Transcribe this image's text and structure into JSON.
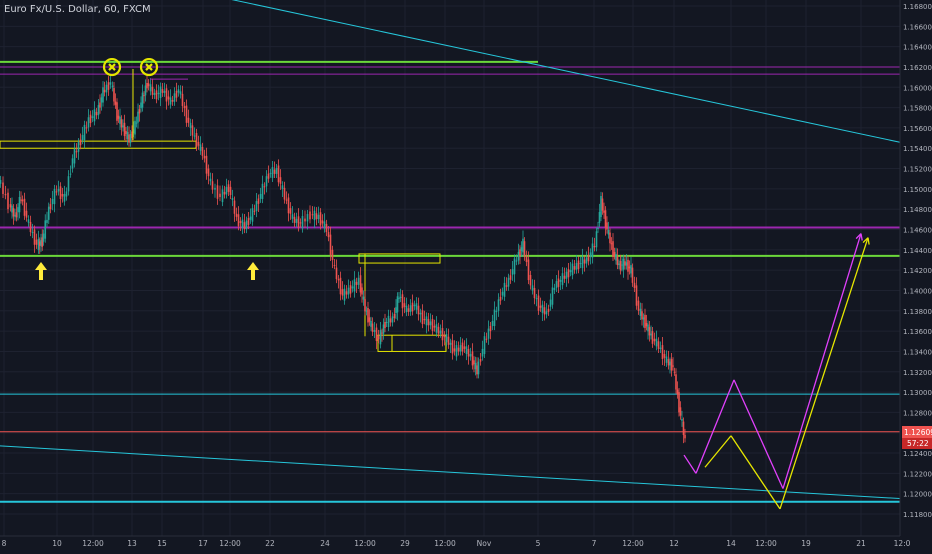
{
  "header": {
    "title": "Euro Fx/U.S. Dollar, 60, FXCM"
  },
  "chart_data": {
    "type": "candlestick",
    "title": "Euro Fx/U.S. Dollar, 60, FXCM",
    "ylim": [
      1.118,
      1.169
    ],
    "y_ticks": [
      "1.16800",
      "1.16600",
      "1.16400",
      "1.16200",
      "1.16000",
      "1.15800",
      "1.15600",
      "1.15400",
      "1.15200",
      "1.15000",
      "1.14800",
      "1.14600",
      "1.14400",
      "1.14200",
      "1.14000",
      "1.13800",
      "1.13600",
      "1.13400",
      "1.13200",
      "1.13000",
      "1.12800",
      "1.12600",
      "1.12400",
      "1.12200",
      "1.12000",
      "1.11800"
    ],
    "x_ticks": [
      "8",
      "10",
      "12:00",
      "13",
      "15",
      "17",
      "12:00",
      "22",
      "24",
      "12:00",
      "29",
      "12:00",
      "Nov",
      "5",
      "7",
      "12:00",
      "12",
      "14",
      "12:00",
      "19",
      "21",
      "12:0"
    ],
    "grid": true,
    "last_price": {
      "price": "1.12609",
      "countdown": "57:22",
      "color": "#ef5350"
    },
    "price_path": [
      [
        0,
        1.151
      ],
      [
        10,
        1.1485
      ],
      [
        16,
        1.1472
      ],
      [
        22,
        1.1492
      ],
      [
        30,
        1.1465
      ],
      [
        38,
        1.1445
      ],
      [
        43,
        1.1448
      ],
      [
        50,
        1.148
      ],
      [
        58,
        1.15
      ],
      [
        66,
        1.149
      ],
      [
        74,
        1.153
      ],
      [
        82,
        1.1548
      ],
      [
        90,
        1.1568
      ],
      [
        98,
        1.1575
      ],
      [
        104,
        1.1595
      ],
      [
        112,
        1.1605
      ],
      [
        118,
        1.1572
      ],
      [
        124,
        1.156
      ],
      [
        130,
        1.1548
      ],
      [
        136,
        1.1562
      ],
      [
        142,
        1.1585
      ],
      [
        148,
        1.1604
      ],
      [
        156,
        1.1592
      ],
      [
        164,
        1.1597
      ],
      [
        172,
        1.1585
      ],
      [
        180,
        1.1598
      ],
      [
        188,
        1.157
      ],
      [
        196,
        1.155
      ],
      [
        204,
        1.1535
      ],
      [
        212,
        1.1505
      ],
      [
        222,
        1.1492
      ],
      [
        230,
        1.1502
      ],
      [
        238,
        1.147
      ],
      [
        246,
        1.1463
      ],
      [
        254,
        1.1476
      ],
      [
        262,
        1.1495
      ],
      [
        270,
        1.1515
      ],
      [
        278,
        1.1518
      ],
      [
        286,
        1.1492
      ],
      [
        294,
        1.147
      ],
      [
        302,
        1.1466
      ],
      [
        312,
        1.1475
      ],
      [
        320,
        1.1472
      ],
      [
        328,
        1.146
      ],
      [
        336,
        1.142
      ],
      [
        344,
        1.1395
      ],
      [
        352,
        1.1402
      ],
      [
        360,
        1.141
      ],
      [
        366,
        1.1382
      ],
      [
        372,
        1.1365
      ],
      [
        380,
        1.1352
      ],
      [
        386,
        1.1368
      ],
      [
        394,
        1.1372
      ],
      [
        400,
        1.1395
      ],
      [
        408,
        1.138
      ],
      [
        416,
        1.1386
      ],
      [
        424,
        1.1372
      ],
      [
        432,
        1.1367
      ],
      [
        440,
        1.136
      ],
      [
        448,
        1.1352
      ],
      [
        456,
        1.134
      ],
      [
        464,
        1.1345
      ],
      [
        472,
        1.1335
      ],
      [
        478,
        1.132
      ],
      [
        486,
        1.135
      ],
      [
        494,
        1.137
      ],
      [
        502,
        1.1395
      ],
      [
        510,
        1.141
      ],
      [
        518,
        1.1432
      ],
      [
        524,
        1.1446
      ],
      [
        532,
        1.1405
      ],
      [
        540,
        1.1385
      ],
      [
        548,
        1.1377
      ],
      [
        556,
        1.1405
      ],
      [
        564,
        1.1412
      ],
      [
        572,
        1.142
      ],
      [
        580,
        1.1426
      ],
      [
        588,
        1.143
      ],
      [
        596,
        1.1445
      ],
      [
        602,
        1.1488
      ],
      [
        608,
        1.146
      ],
      [
        614,
        1.1438
      ],
      [
        620,
        1.1424
      ],
      [
        626,
        1.1427
      ],
      [
        632,
        1.142
      ],
      [
        640,
        1.138
      ],
      [
        646,
        1.1368
      ],
      [
        652,
        1.1355
      ],
      [
        660,
        1.1345
      ],
      [
        668,
        1.133
      ],
      [
        674,
        1.1325
      ],
      [
        680,
        1.1285
      ],
      [
        686,
        1.1252
      ]
    ],
    "horizontal_levels": [
      {
        "price": 1.1625,
        "color": "#6bd83a",
        "extent": "partial"
      },
      {
        "price": 1.162,
        "color": "#9c27b0",
        "extent": "full"
      },
      {
        "price": 1.1613,
        "color": "#9c27b0",
        "extent": "full"
      },
      {
        "price": 1.1462,
        "color": "#9c27b0",
        "extent": "full"
      },
      {
        "price": 1.1434,
        "color": "#6bd83a",
        "extent": "full"
      },
      {
        "price": 1.1298,
        "color": "#26c6da",
        "extent": "full"
      },
      {
        "price": 1.12609,
        "color": "#ef5350",
        "extent": "full"
      },
      {
        "price": 1.1192,
        "color": "#26c6da",
        "extent": "full"
      }
    ],
    "trend_lines": [
      {
        "from": [
          0.23,
          1.169
        ],
        "to": [
          0.97,
          1.1545
        ],
        "color": "#26c6da"
      },
      {
        "from": [
          0.0,
          1.1247
        ],
        "to": [
          0.97,
          1.1195
        ],
        "color": "#26c6da"
      }
    ],
    "zones": [
      {
        "from_price": 1.1547,
        "to_price": 1.154,
        "color": "#e6e600"
      },
      {
        "from_price": 1.1436,
        "to_price": 1.1427,
        "color": "#e6e600"
      },
      {
        "from_price": 1.1356,
        "to_price": 1.134,
        "color": "#e6e600"
      }
    ],
    "annotations": {
      "arrow_markers": [
        {
          "price": 1.143,
          "color": "#ffeb3b"
        },
        {
          "price": 1.143,
          "color": "#ffeb3b"
        }
      ],
      "circle_markers": [
        {
          "price": 1.1614,
          "color": "#e6e600"
        },
        {
          "price": 1.1614,
          "color": "#e6e600"
        }
      ],
      "projection_magenta": [
        [
          1.1238,
          1.122
        ],
        [
          1.122,
          1.1312
        ],
        [
          1.1312,
          1.1205
        ],
        [
          1.1205,
          1.1456
        ]
      ],
      "projection_yellow": [
        [
          1.1226,
          1.1257
        ],
        [
          1.1257,
          1.1185
        ],
        [
          1.1185,
          1.1452
        ]
      ],
      "projection_colors": [
        "#e040fb",
        "#e6e600"
      ]
    }
  }
}
